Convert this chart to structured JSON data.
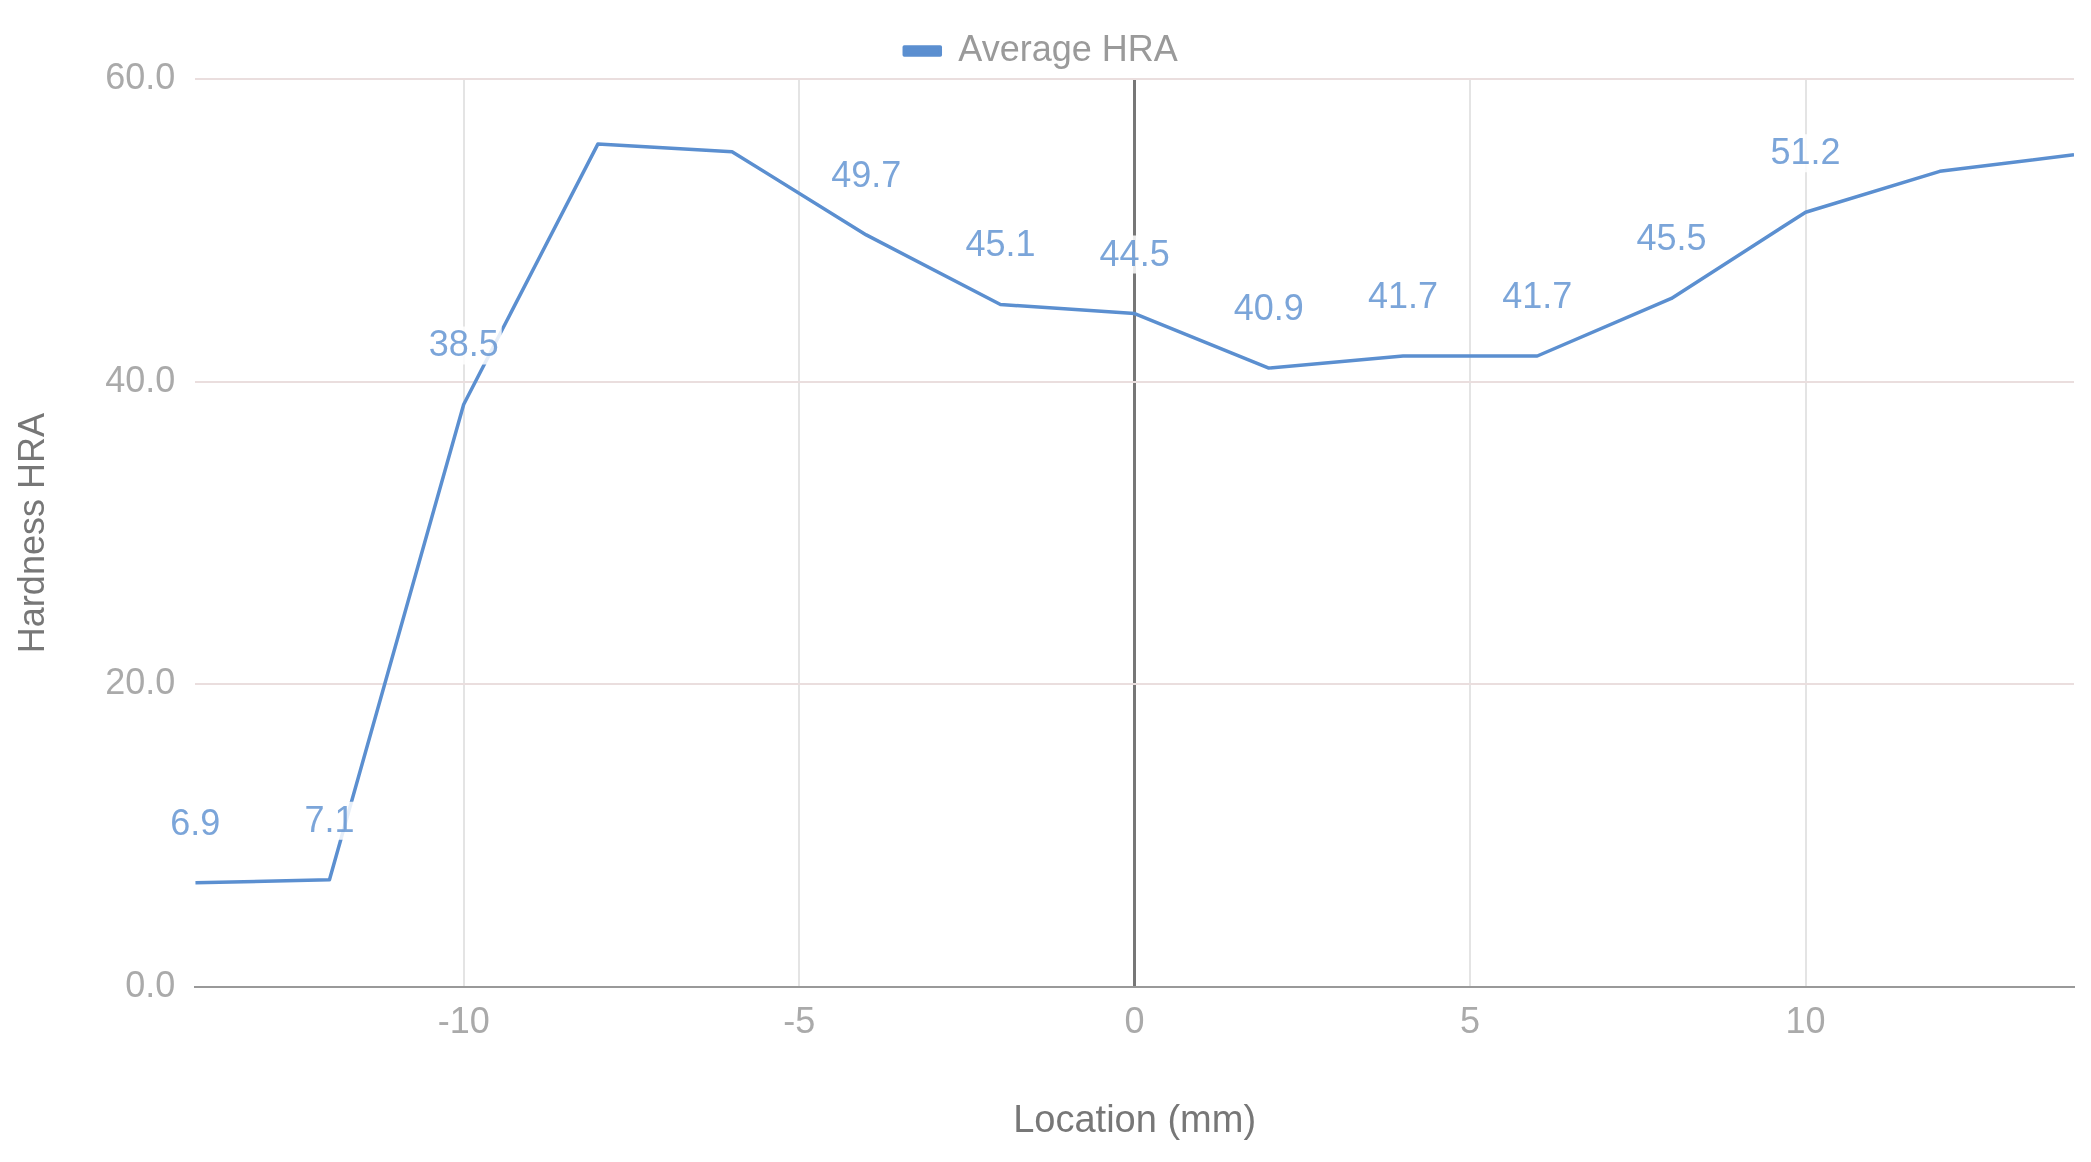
{
  "chart_data": {
    "type": "line",
    "xlabel": "Location (mm)",
    "ylabel": "Hardness HRA",
    "x": [
      -14,
      -12,
      -10,
      -8,
      -6,
      -4,
      -2,
      0,
      2,
      4,
      6,
      8,
      10,
      12,
      14
    ],
    "series": [
      {
        "name": "Average HRA",
        "color": "#5b8fd0",
        "values": [
          6.9,
          7.1,
          38.5,
          55.7,
          55.2,
          49.7,
          45.1,
          44.5,
          40.9,
          41.7,
          41.7,
          45.5,
          51.2,
          53.9,
          55.0
        ],
        "value_labels": [
          "6.9",
          "7.1",
          "38.5",
          null,
          null,
          "49.7",
          "45.1",
          "44.5",
          "40.9",
          "41.7",
          "41.7",
          "45.5",
          "51.2",
          null,
          null
        ]
      }
    ],
    "xlim": [
      -14,
      14
    ],
    "xticks": [
      -10,
      -5,
      0,
      5,
      10
    ],
    "ylim": [
      0,
      60
    ],
    "yticks": [
      {
        "value": 0,
        "label": "0.0"
      },
      {
        "value": 20,
        "label": "20.0"
      },
      {
        "value": 40,
        "label": "40.0"
      },
      {
        "value": 60,
        "label": "60.0"
      }
    ],
    "grid": true,
    "legend": "top",
    "marker": "none",
    "line_style": "solid"
  }
}
